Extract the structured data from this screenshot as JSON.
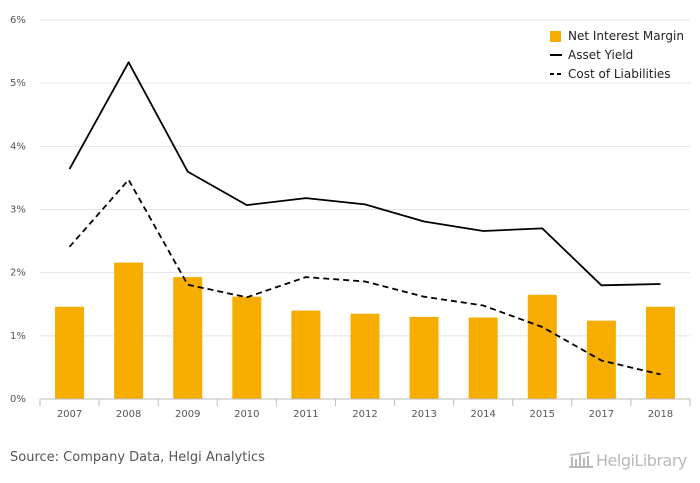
{
  "chart_data": {
    "type": "bar",
    "title": "",
    "xlabel": "",
    "ylabel": "",
    "categories": [
      "2007",
      "2008",
      "2009",
      "2010",
      "2011",
      "2012",
      "2013",
      "2014",
      "2015",
      "2017",
      "2018"
    ],
    "ylim": [
      0,
      6
    ],
    "yticks": [
      0,
      1,
      2,
      3,
      4,
      5,
      6
    ],
    "ytick_labels": [
      "0%",
      "1%",
      "2%",
      "3%",
      "4%",
      "5%",
      "6%"
    ],
    "grid": true,
    "legend_position": "top-right",
    "series": [
      {
        "name": "Net Interest Margin",
        "kind": "bar",
        "color": "#f7ad00",
        "values": [
          1.46,
          2.16,
          1.93,
          1.62,
          1.4,
          1.35,
          1.3,
          1.29,
          1.65,
          1.24,
          1.46
        ]
      },
      {
        "name": "Asset Yield",
        "kind": "line",
        "style": "solid",
        "color": "#000000",
        "values": [
          3.64,
          5.33,
          3.6,
          3.07,
          3.18,
          3.08,
          2.81,
          2.66,
          2.7,
          1.8,
          1.82
        ]
      },
      {
        "name": "Cost of Liabilities",
        "kind": "line",
        "style": "dashed",
        "color": "#000000",
        "values": [
          2.41,
          3.47,
          1.81,
          1.61,
          1.93,
          1.86,
          1.62,
          1.48,
          1.14,
          0.61,
          0.39
        ]
      }
    ]
  },
  "footer": {
    "source": "Source: Company Data, Helgi Analytics",
    "logo_text": "HelgiLibrary"
  }
}
